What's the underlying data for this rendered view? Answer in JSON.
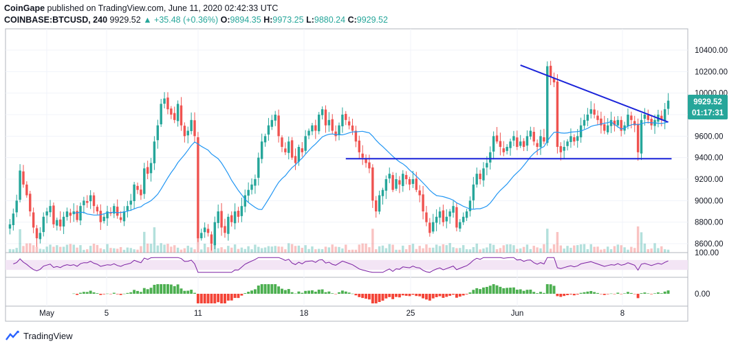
{
  "header": {
    "author": "CoinGape",
    "published_on": "published on TradingView.com, June 11, 2020 02:42:33 UTC",
    "symbol": "COINBASE:BTCUSD, 240",
    "last": "9929.52",
    "change": "▲ +35.48 (+0.36%)",
    "o_label": "O:",
    "o_val": "9894.35",
    "h_label": "H:",
    "h_val": "9973.25",
    "l_label": "L:",
    "l_val": "9880.24",
    "c_label": "C:",
    "c_val": "9929.52"
  },
  "price_tag": {
    "price": "9929.52",
    "countdown": "01:17:31"
  },
  "rsi_axis_label": "100.00",
  "macd_axis_label": "0.00",
  "footer": {
    "brand": "TradingView",
    "logo_icon": "tradingview-logo-icon"
  },
  "colors": {
    "up": "#26a69a",
    "down": "#ef5350",
    "ma": "#2196f3",
    "trendline": "#1a23d9",
    "rsi": "#7b1fa2",
    "hist_up": "#4caf50",
    "hist_down": "#f44336",
    "price_tag": "#26a69a"
  },
  "chart_data": {
    "type": "candlestick",
    "price_axis": {
      "ticks": [
        8600,
        8800,
        9000,
        9200,
        9400,
        9600,
        9800,
        10000,
        10200,
        10400
      ]
    },
    "time_axis": {
      "labels": [
        "May",
        "5",
        "11",
        "18",
        "25",
        "Jun",
        "8"
      ]
    },
    "candles_4h": {
      "closes": [
        8780,
        8880,
        9000,
        9280,
        9150,
        9050,
        8900,
        8750,
        8650,
        8700,
        8850,
        8900,
        8950,
        8780,
        8820,
        8760,
        8850,
        8900,
        8860,
        8900,
        8820,
        8950,
        9000,
        8980,
        9050,
        8950,
        8900,
        8800,
        8850,
        8900,
        8880,
        8950,
        8860,
        8820,
        8900,
        8950,
        9000,
        9150,
        9100,
        9050,
        9300,
        9250,
        9350,
        9550,
        9700,
        9900,
        9950,
        9850,
        9800,
        9750,
        9900,
        9700,
        9600,
        9650,
        9750,
        9600,
        8650,
        8700,
        8750,
        8700,
        8600,
        8800,
        8900,
        8750,
        8700,
        8850,
        8800,
        8900,
        8850,
        8950,
        9050,
        9100,
        9150,
        9200,
        9400,
        9550,
        9600,
        9700,
        9750,
        9800,
        9600,
        9500,
        9450,
        9550,
        9400,
        9350,
        9500,
        9450,
        9600,
        9650,
        9700,
        9650,
        9800,
        9850,
        9700,
        9750,
        9650,
        9600,
        9700,
        9800,
        9750,
        9700,
        9650,
        9550,
        9450,
        9400,
        9350,
        9300,
        9000,
        8900,
        9050,
        9100,
        9200,
        9250,
        9100,
        9200,
        9150,
        9250,
        9200,
        9150,
        9200,
        9100,
        9050,
        8900,
        8800,
        8700,
        8800,
        8850,
        8900,
        8800,
        8850,
        8900,
        8950,
        8750,
        8800,
        8850,
        8900,
        9000,
        9150,
        9250,
        9200,
        9300,
        9350,
        9450,
        9600,
        9550,
        9500,
        9450,
        9500,
        9550,
        9600,
        9500,
        9550,
        9500,
        9600,
        9650,
        9550,
        9500,
        9600,
        9550,
        10250,
        10150,
        10100,
        9500,
        9450,
        9500,
        9550,
        9600,
        9550,
        9600,
        9700,
        9750,
        9800,
        9850,
        9800,
        9750,
        9700,
        9650,
        9700,
        9750,
        9700,
        9750,
        9650,
        9700,
        9800,
        9750,
        9700,
        9450,
        9750,
        9800,
        9750,
        9700,
        9750,
        9800,
        9750,
        9850,
        9930
      ]
    },
    "moving_average": {
      "name": "MA"
    },
    "trendlines": [
      {
        "from": {
          "bar": 152,
          "price": 10260
        },
        "to": {
          "bar": 196,
          "price": 9730
        }
      },
      {
        "from": {
          "bar": 100,
          "price": 9390
        },
        "to": {
          "bar": 197,
          "price": 9390
        }
      }
    ],
    "rsi": {
      "range": [
        0,
        100
      ],
      "band": [
        30,
        70
      ]
    },
    "macd_histogram": {}
  }
}
